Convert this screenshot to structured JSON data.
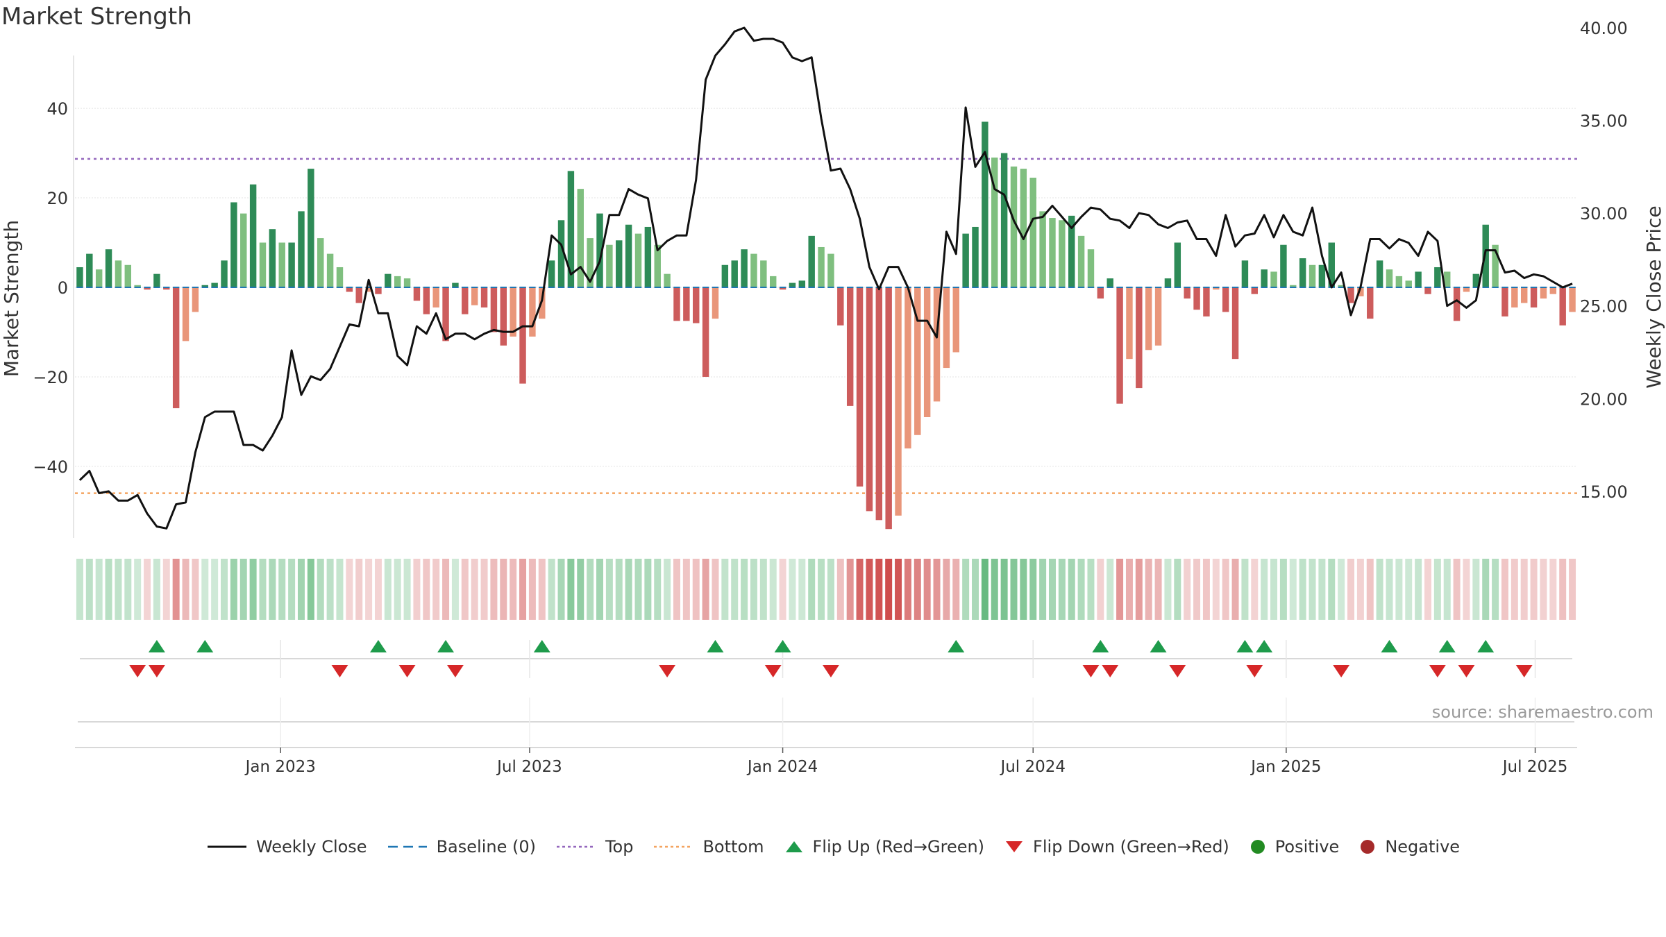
{
  "page": {
    "title": "Market Strength",
    "source": "source: sharemaestro.com"
  },
  "colors": {
    "pos_strong": "#2e8b57",
    "pos_light": "#7fbf7f",
    "neg_strong": "#cd5c5c",
    "neg_light": "#e9967a",
    "close": "#111111",
    "baseline": "#1f77b4",
    "top": "#9467bd",
    "bottom": "#f4a460",
    "flip_up": "#1e9b4b",
    "flip_down": "#d62728",
    "positive": "#228b22",
    "negative": "#a52a2a"
  },
  "legend": [
    {
      "key": "close",
      "label": "Weekly Close"
    },
    {
      "key": "baseline",
      "label": "Baseline (0)"
    },
    {
      "key": "top",
      "label": "Top"
    },
    {
      "key": "bottom",
      "label": "Bottom"
    },
    {
      "key": "flip_up",
      "label": "Flip Up (Red→Green)"
    },
    {
      "key": "flip_down",
      "label": "Flip Down (Green→Red)"
    },
    {
      "key": "positive",
      "label": "Positive"
    },
    {
      "key": "negative",
      "label": "Negative"
    }
  ],
  "chart_data": {
    "type": "bar",
    "title": "Market Strength",
    "ylabel": "Market Strength",
    "y2label": "Weekly Close Price",
    "ylim": [
      -58,
      58
    ],
    "y2lim": [
      12.0,
      40.0
    ],
    "yticks": [
      -40,
      -20,
      0,
      20,
      40
    ],
    "y2ticks": [
      15.0,
      20.0,
      25.0,
      30.0,
      35.0,
      40.0
    ],
    "y2tick_labels": [
      "15.00",
      "20.00",
      "25.00",
      "30.00",
      "35.00",
      "40.00"
    ],
    "top_level": 28.7,
    "bottom_level": -46,
    "grid": true,
    "legend_position": "bottom",
    "start_date": "2022-08-08",
    "end_date": "2025-09-01",
    "x_ticks": [
      {
        "date": "2023-01-01",
        "label": "Jan 2023"
      },
      {
        "date": "2023-07-01",
        "label": "Jul 2023"
      },
      {
        "date": "2024-01-01",
        "label": "Jan 2024"
      },
      {
        "date": "2024-07-01",
        "label": "Jul 2024"
      },
      {
        "date": "2025-01-01",
        "label": "Jan 2025"
      },
      {
        "date": "2025-07-01",
        "label": "Jul 2025"
      }
    ],
    "strength": [
      4.5,
      7.5,
      4,
      8.5,
      6,
      5,
      0.5,
      -0.5,
      3,
      -0.5,
      -27,
      -12,
      -5.5,
      0.5,
      1,
      6,
      19,
      16.5,
      23,
      10,
      13,
      10,
      10,
      17,
      26.5,
      11,
      7.5,
      4.5,
      -1,
      -3.5,
      -1,
      -1.5,
      3,
      2.5,
      2,
      -3,
      -6,
      -4.5,
      -12,
      1,
      -6,
      -4,
      -4.5,
      -10,
      -13,
      -11,
      -21.5,
      -11,
      -7,
      6,
      15,
      26,
      22,
      11,
      16.5,
      9.5,
      10.5,
      14,
      12,
      13.5,
      9.5,
      3,
      -7.5,
      -7.5,
      -8,
      -20,
      -7,
      5,
      6,
      8.5,
      7.5,
      6,
      2.5,
      -0.5,
      1,
      1.5,
      11.5,
      9,
      7.5,
      -8.5,
      -26.5,
      -44.5,
      -50,
      -52,
      -54,
      -51,
      -36,
      -33,
      -29,
      -25.5,
      -18,
      -14.5,
      12,
      13.5,
      37,
      29,
      30,
      27,
      26.5,
      24.5,
      17,
      15.5,
      15,
      16,
      11.5,
      8.5,
      -2.5,
      2,
      -26,
      -16,
      -22.5,
      -14,
      -13,
      2,
      10,
      -2.5,
      -5,
      -6.5,
      -0.5,
      -5.5,
      -16,
      6,
      -1.5,
      4,
      3.5,
      9.5,
      0.5,
      6.5,
      5,
      5,
      10,
      0.5,
      -3.5,
      -2,
      -7,
      6,
      4,
      2.5,
      1.5,
      3.5,
      -1.5,
      4.5,
      3.5,
      -7.5,
      -1,
      3,
      14,
      9.5,
      -6.5,
      -4.5,
      -3.5,
      -4.5,
      -2.5,
      -1.5,
      -8.5,
      -5.5
    ],
    "weekly_close": [
      15.6,
      16.1,
      14.9,
      15.0,
      14.5,
      14.5,
      14.8,
      13.8,
      13.1,
      13.0,
      14.3,
      14.4,
      17.1,
      19.0,
      19.3,
      19.3,
      19.3,
      17.5,
      17.5,
      17.2,
      18.0,
      19.0,
      22.6,
      20.2,
      21.2,
      21.0,
      21.6,
      22.8,
      24.0,
      23.9,
      26.4,
      24.6,
      24.6,
      22.3,
      21.8,
      23.9,
      23.5,
      24.6,
      23.2,
      23.5,
      23.5,
      23.2,
      23.5,
      23.7,
      23.6,
      23.6,
      23.9,
      23.9,
      25.3,
      28.8,
      28.3,
      26.7,
      27.1,
      26.3,
      27.4,
      29.9,
      29.9,
      31.3,
      31.0,
      30.8,
      28.0,
      28.5,
      28.8,
      28.8,
      31.8,
      37.2,
      38.5,
      39.1,
      39.8,
      40.0,
      39.3,
      39.4,
      39.4,
      39.2,
      38.4,
      38.2,
      38.4,
      35.1,
      32.3,
      32.4,
      31.3,
      29.7,
      27.1,
      25.9,
      27.1,
      27.1,
      26.0,
      24.2,
      24.2,
      23.3,
      29.0,
      27.8,
      35.7,
      32.5,
      33.3,
      31.3,
      31.0,
      29.6,
      28.6,
      29.7,
      29.8,
      30.4,
      29.8,
      29.2,
      29.8,
      30.3,
      30.2,
      29.7,
      29.6,
      29.2,
      30.0,
      29.9,
      29.4,
      29.2,
      29.5,
      29.6,
      28.6,
      28.6,
      27.7,
      29.9,
      28.2,
      28.8,
      28.9,
      29.9,
      28.7,
      29.9,
      29.0,
      28.8,
      30.3,
      27.7,
      26.0,
      26.8,
      24.5,
      26.0,
      28.6,
      28.6,
      28.1,
      28.6,
      28.4,
      27.7,
      29.0,
      28.5,
      25.0,
      25.3,
      24.9,
      25.3,
      28.0,
      28.0,
      26.8,
      26.9,
      26.5,
      26.7,
      26.6,
      26.3,
      26.0,
      26.2
    ],
    "flip_up_weeks": [
      8,
      13,
      31,
      38,
      48,
      66,
      73,
      91,
      106,
      112,
      121,
      123,
      136,
      142,
      146
    ],
    "flip_down_weeks": [
      6,
      8,
      27,
      34,
      39,
      61,
      72,
      78,
      105,
      107,
      114,
      122,
      131,
      141,
      144,
      150
    ]
  }
}
